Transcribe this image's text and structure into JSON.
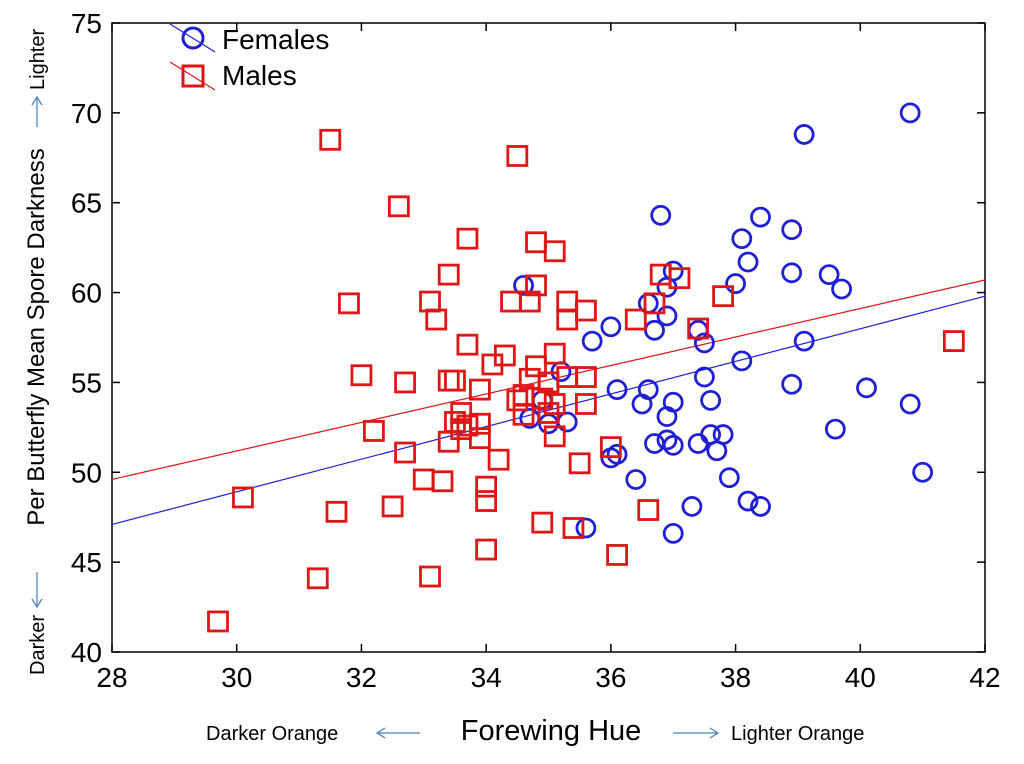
{
  "chart_data": {
    "type": "scatter",
    "title": "",
    "xlabel": "Forewing Hue",
    "ylabel": "Per Butterfly Mean Spore Darkness",
    "x_low_label": "Darker Orange",
    "x_high_label": "Lighter Orange",
    "y_low_label": "Darker",
    "y_high_label": "Lighter",
    "xlim": [
      28,
      42
    ],
    "ylim": [
      40,
      75
    ],
    "xticks": [
      28,
      30,
      32,
      34,
      36,
      38,
      40,
      42
    ],
    "yticks": [
      40,
      45,
      50,
      55,
      60,
      65,
      70,
      75
    ],
    "grid": false,
    "legend_position": "top-left",
    "series": [
      {
        "name": "Females",
        "marker": "circle",
        "color": "#1f1fd6",
        "trendline": {
          "x": [
            28,
            42
          ],
          "y": [
            47.1,
            59.8
          ]
        },
        "points": [
          [
            34.6,
            60.4
          ],
          [
            35.7,
            57.3
          ],
          [
            36.0,
            58.1
          ],
          [
            36.6,
            59.4
          ],
          [
            36.7,
            57.9
          ],
          [
            36.8,
            64.3
          ],
          [
            36.9,
            58.7
          ],
          [
            37.0,
            61.2
          ],
          [
            36.9,
            60.3
          ],
          [
            37.4,
            57.9
          ],
          [
            37.5,
            57.2
          ],
          [
            38.0,
            60.5
          ],
          [
            38.1,
            63.0
          ],
          [
            38.2,
            61.7
          ],
          [
            38.4,
            64.2
          ],
          [
            38.9,
            63.5
          ],
          [
            38.9,
            61.1
          ],
          [
            39.1,
            68.8
          ],
          [
            39.5,
            61.0
          ],
          [
            39.7,
            60.2
          ],
          [
            40.8,
            70.0
          ],
          [
            39.1,
            57.3
          ],
          [
            38.1,
            56.2
          ],
          [
            37.5,
            55.3
          ],
          [
            37.6,
            54.0
          ],
          [
            36.1,
            54.6
          ],
          [
            36.5,
            53.8
          ],
          [
            36.6,
            54.6
          ],
          [
            37.0,
            53.9
          ],
          [
            36.9,
            53.1
          ],
          [
            34.7,
            53.0
          ],
          [
            35.0,
            52.7
          ],
          [
            35.3,
            52.8
          ],
          [
            34.9,
            54.0
          ],
          [
            35.2,
            55.6
          ],
          [
            36.7,
            51.6
          ],
          [
            36.9,
            51.8
          ],
          [
            37.0,
            51.5
          ],
          [
            37.4,
            51.6
          ],
          [
            37.6,
            52.1
          ],
          [
            37.7,
            51.2
          ],
          [
            37.8,
            52.1
          ],
          [
            38.9,
            54.9
          ],
          [
            39.6,
            52.4
          ],
          [
            40.1,
            54.7
          ],
          [
            40.8,
            53.8
          ],
          [
            41.0,
            50.0
          ],
          [
            36.0,
            50.8
          ],
          [
            36.1,
            51.0
          ],
          [
            36.4,
            49.6
          ],
          [
            37.9,
            49.7
          ],
          [
            38.2,
            48.4
          ],
          [
            38.4,
            48.1
          ],
          [
            37.3,
            48.1
          ],
          [
            37.0,
            46.6
          ],
          [
            35.6,
            46.9
          ]
        ]
      },
      {
        "name": "Males",
        "marker": "square",
        "color": "#e01515",
        "trendline": {
          "x": [
            28,
            42
          ],
          "y": [
            49.6,
            60.7
          ]
        },
        "points": [
          [
            31.5,
            68.5
          ],
          [
            34.5,
            67.6
          ],
          [
            32.6,
            64.8
          ],
          [
            33.7,
            63.0
          ],
          [
            34.8,
            62.8
          ],
          [
            35.1,
            62.3
          ],
          [
            33.4,
            61.0
          ],
          [
            36.8,
            61.0
          ],
          [
            37.1,
            60.8
          ],
          [
            34.8,
            60.4
          ],
          [
            31.8,
            59.4
          ],
          [
            33.1,
            59.5
          ],
          [
            34.4,
            59.5
          ],
          [
            34.7,
            59.5
          ],
          [
            35.3,
            59.5
          ],
          [
            35.6,
            59.0
          ],
          [
            36.7,
            59.4
          ],
          [
            37.8,
            59.8
          ],
          [
            33.2,
            58.5
          ],
          [
            35.3,
            58.5
          ],
          [
            36.4,
            58.5
          ],
          [
            37.4,
            58.0
          ],
          [
            33.7,
            57.1
          ],
          [
            35.1,
            56.6
          ],
          [
            34.3,
            56.5
          ],
          [
            34.1,
            56.0
          ],
          [
            34.8,
            55.9
          ],
          [
            32.0,
            55.4
          ],
          [
            32.7,
            55.0
          ],
          [
            33.4,
            55.1
          ],
          [
            33.5,
            55.1
          ],
          [
            34.7,
            55.2
          ],
          [
            35.0,
            55.0
          ],
          [
            35.3,
            55.3
          ],
          [
            35.6,
            55.3
          ],
          [
            33.9,
            54.6
          ],
          [
            34.6,
            54.3
          ],
          [
            34.9,
            54.1
          ],
          [
            35.1,
            53.8
          ],
          [
            34.5,
            54.0
          ],
          [
            35.6,
            53.8
          ],
          [
            33.5,
            52.8
          ],
          [
            33.6,
            53.3
          ],
          [
            34.6,
            53.2
          ],
          [
            35.0,
            53.3
          ],
          [
            32.2,
            52.3
          ],
          [
            33.6,
            52.4
          ],
          [
            33.7,
            52.6
          ],
          [
            33.9,
            52.7
          ],
          [
            33.4,
            51.7
          ],
          [
            33.9,
            51.9
          ],
          [
            35.1,
            52.0
          ],
          [
            32.7,
            51.1
          ],
          [
            36.0,
            51.4
          ],
          [
            34.2,
            50.7
          ],
          [
            35.5,
            50.5
          ],
          [
            33.0,
            49.6
          ],
          [
            33.3,
            49.5
          ],
          [
            34.0,
            49.2
          ],
          [
            34.0,
            48.4
          ],
          [
            30.1,
            48.6
          ],
          [
            31.6,
            47.8
          ],
          [
            32.5,
            48.1
          ],
          [
            34.9,
            47.2
          ],
          [
            35.4,
            46.9
          ],
          [
            36.6,
            47.9
          ],
          [
            34.0,
            45.7
          ],
          [
            36.1,
            45.4
          ],
          [
            31.3,
            44.1
          ],
          [
            33.1,
            44.2
          ],
          [
            29.7,
            41.7
          ],
          [
            41.5,
            57.3
          ]
        ]
      }
    ]
  }
}
